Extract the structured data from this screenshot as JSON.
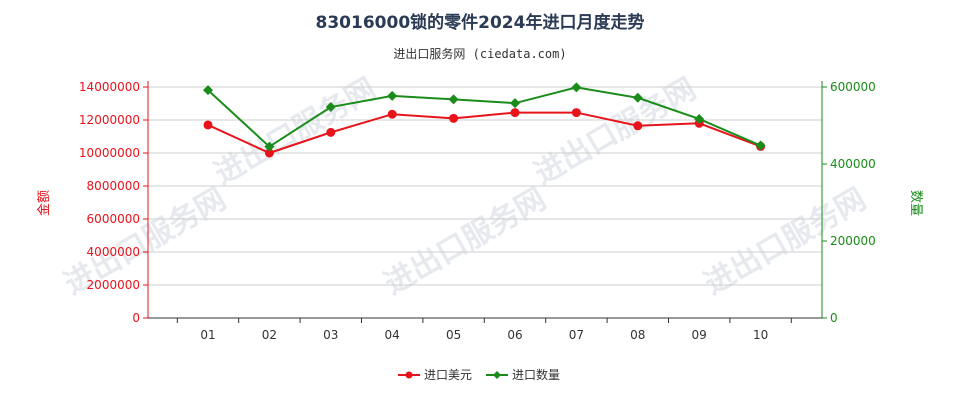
{
  "chart_data": {
    "type": "line",
    "title": "83016000锁的零件2024年进口月度走势",
    "subtitle": "进出口服务网 (ciedata.com)",
    "watermark": "进出口服务网",
    "categories": [
      "01",
      "02",
      "03",
      "04",
      "05",
      "06",
      "07",
      "08",
      "09",
      "10"
    ],
    "y_left": {
      "label": "金额",
      "ylim": [
        0,
        14000000
      ],
      "ticks": [
        0,
        2000000,
        4000000,
        6000000,
        8000000,
        10000000,
        12000000,
        14000000
      ],
      "tick_labels": [
        "0",
        "2000000",
        "4000000",
        "6000000",
        "8000000",
        "10000000",
        "12000000",
        "14000000"
      ],
      "color": "#e8141b"
    },
    "y_right": {
      "label": "数量",
      "ylim": [
        0,
        600000
      ],
      "ticks": [
        0,
        200000,
        400000,
        600000
      ],
      "tick_labels": [
        "0",
        "200000",
        "400000",
        "600000"
      ],
      "color": "#1a8c1a"
    },
    "series": [
      {
        "name": "进口美元",
        "axis": "left",
        "color": "#e8141b",
        "marker": "circle",
        "values": [
          11700000,
          10000000,
          11250000,
          12350000,
          12100000,
          12450000,
          12450000,
          11650000,
          11800000,
          10400000
        ]
      },
      {
        "name": "进口数量",
        "axis": "right",
        "color": "#1a8c1a",
        "marker": "diamond",
        "values": [
          592000,
          445000,
          548000,
          577000,
          568000,
          558000,
          599000,
          572000,
          517000,
          448000
        ]
      }
    ],
    "grid": true,
    "legend_position": "bottom-center"
  }
}
